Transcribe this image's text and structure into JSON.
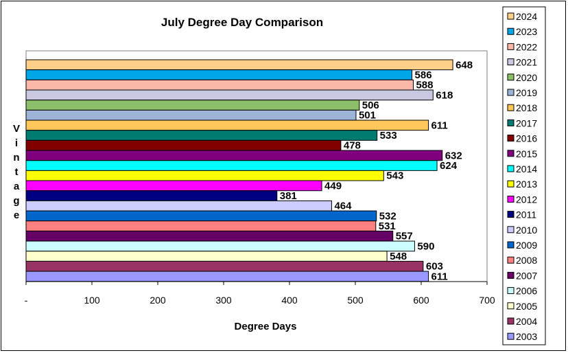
{
  "chart_data": {
    "type": "bar",
    "orientation": "horizontal",
    "title": "July Degree Day Comparison",
    "xlabel": "Degree Days",
    "ylabel": "Vintage",
    "xlim": [
      0,
      700
    ],
    "x_ticks": [
      "-",
      "100",
      "200",
      "300",
      "400",
      "500",
      "600",
      "700"
    ],
    "grid": false,
    "legend_position": "right",
    "series": [
      {
        "name": "2024",
        "value": 648,
        "color": "#FFD08A"
      },
      {
        "name": "2023",
        "value": 586,
        "color": "#00A6E6"
      },
      {
        "name": "2022",
        "value": 588,
        "color": "#F9B8A8"
      },
      {
        "name": "2021",
        "value": 618,
        "color": "#C8C8E0"
      },
      {
        "name": "2020",
        "value": 506,
        "color": "#8DBF6A"
      },
      {
        "name": "2019",
        "value": 501,
        "color": "#9EB3D8"
      },
      {
        "name": "2018",
        "value": 611,
        "color": "#FFC65A"
      },
      {
        "name": "2017",
        "value": 533,
        "color": "#007B70"
      },
      {
        "name": "2016",
        "value": 478,
        "color": "#800000"
      },
      {
        "name": "2015",
        "value": 632,
        "color": "#800080"
      },
      {
        "name": "2014",
        "value": 624,
        "color": "#00FFFF"
      },
      {
        "name": "2013",
        "value": 543,
        "color": "#FFFF00"
      },
      {
        "name": "2012",
        "value": 449,
        "color": "#FF00FF"
      },
      {
        "name": "2011",
        "value": 381,
        "color": "#000080"
      },
      {
        "name": "2010",
        "value": 464,
        "color": "#CCCCFF"
      },
      {
        "name": "2009",
        "value": 532,
        "color": "#0066CC"
      },
      {
        "name": "2008",
        "value": 531,
        "color": "#FF8080"
      },
      {
        "name": "2007",
        "value": 557,
        "color": "#660066"
      },
      {
        "name": "2006",
        "value": 590,
        "color": "#CCFFFF"
      },
      {
        "name": "2005",
        "value": 548,
        "color": "#FFFFCC"
      },
      {
        "name": "2004",
        "value": 603,
        "color": "#993366"
      },
      {
        "name": "2003",
        "value": 611,
        "color": "#9999FF"
      }
    ]
  }
}
